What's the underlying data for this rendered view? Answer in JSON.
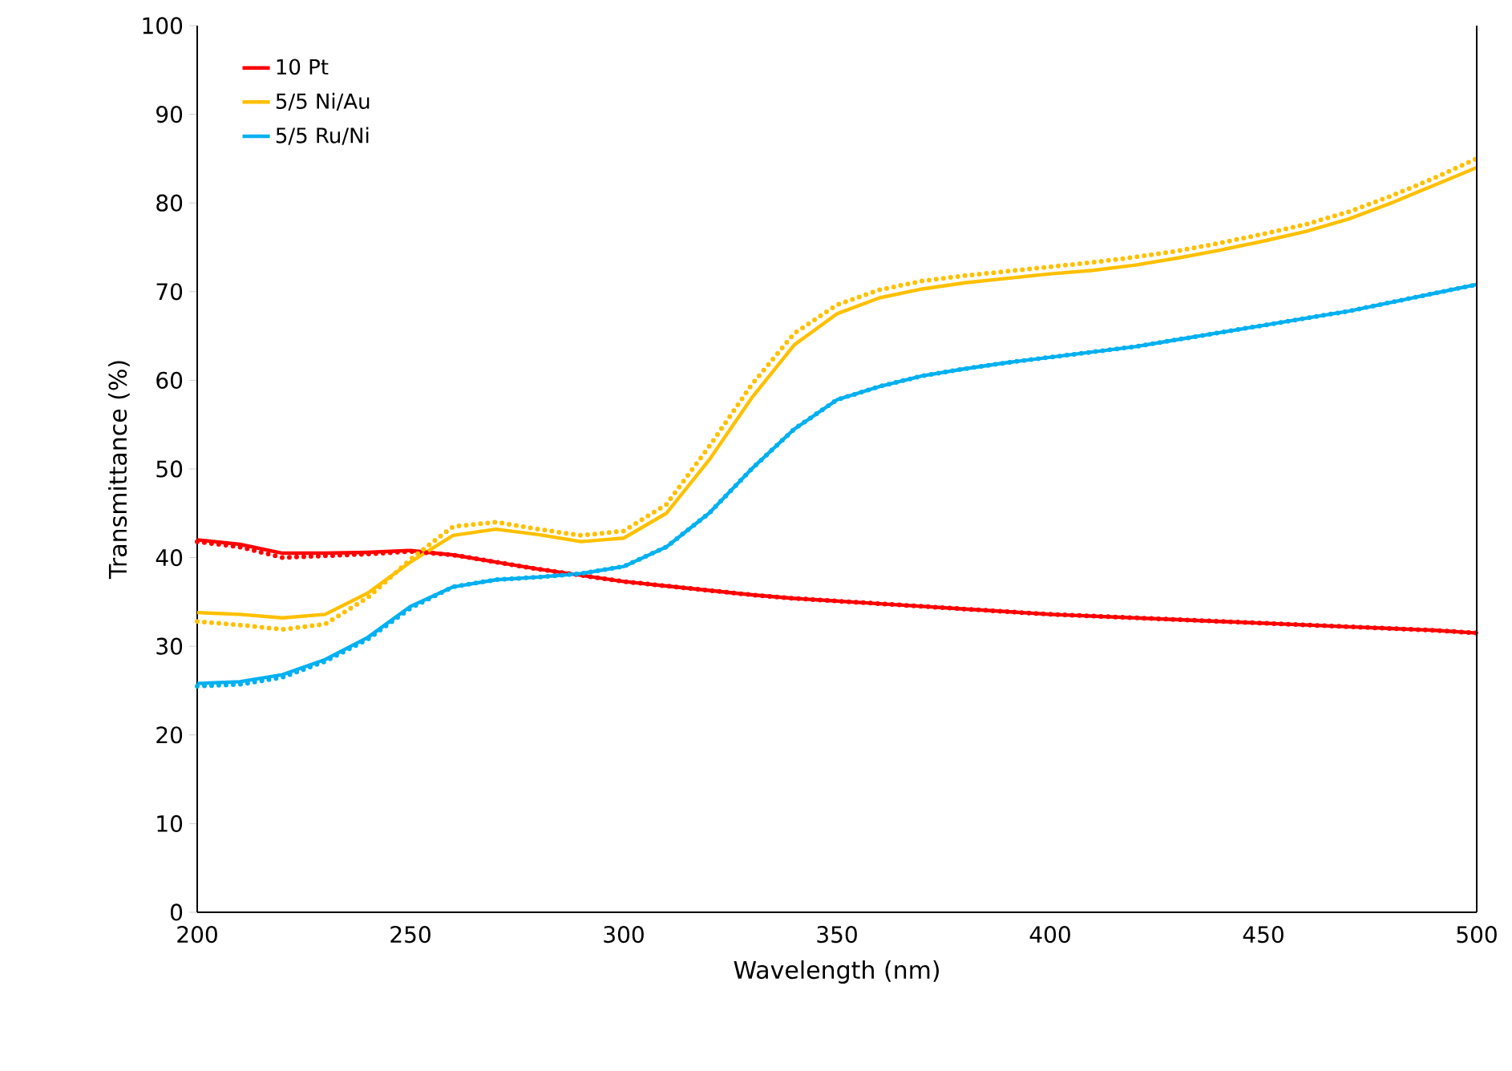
{
  "chart_data": {
    "type": "line",
    "xlabel": "Wavelength (nm)",
    "ylabel": "Transmittance (%)",
    "x": [
      200,
      210,
      220,
      230,
      240,
      250,
      260,
      270,
      280,
      290,
      300,
      310,
      320,
      330,
      340,
      350,
      360,
      370,
      380,
      390,
      400,
      410,
      420,
      430,
      440,
      450,
      460,
      470,
      480,
      490,
      500
    ],
    "xlim": [
      200,
      500
    ],
    "ylim": [
      0,
      100
    ],
    "xticks": [
      200,
      250,
      300,
      350,
      400,
      450,
      500
    ],
    "yticks": [
      0,
      10,
      20,
      30,
      40,
      50,
      60,
      70,
      80,
      90,
      100
    ],
    "grid": false,
    "legend": "top left",
    "marker": "none",
    "series": [
      {
        "name": "10 Pt",
        "color": "#ff0000",
        "line_style": "solid",
        "values": [
          42,
          41.5,
          40.5,
          40.5,
          40.6,
          40.8,
          40.3,
          39.5,
          38.7,
          38,
          37.3,
          36.8,
          36.3,
          35.8,
          35.4,
          35.1,
          34.8,
          34.5,
          34.2,
          33.9,
          33.6,
          33.4,
          33.2,
          33,
          32.8,
          32.6,
          32.4,
          32.2,
          32,
          31.8,
          31.5
        ]
      },
      {
        "name": "5/5 Ni/Au",
        "color": "#ffc000",
        "line_style": "solid",
        "values": [
          33.8,
          33.6,
          33.2,
          33.6,
          36,
          39.5,
          42.5,
          43.2,
          42.6,
          41.8,
          42.2,
          45,
          51,
          58,
          64,
          67.5,
          69.3,
          70.3,
          71,
          71.5,
          72,
          72.4,
          73,
          73.8,
          74.7,
          75.7,
          76.8,
          78.2,
          80,
          82,
          84
        ]
      },
      {
        "name": "5/5 Ru/Ni",
        "color": "#00b0f0",
        "line_style": "solid",
        "values": [
          25.8,
          26,
          26.8,
          28.5,
          31,
          34.5,
          36.7,
          37.5,
          37.8,
          38.2,
          39,
          41.2,
          45,
          50,
          54.5,
          57.8,
          59.3,
          60.5,
          61.3,
          62,
          62.6,
          63.2,
          63.8,
          64.6,
          65.4,
          66.2,
          67,
          67.8,
          68.8,
          69.8,
          70.8
        ]
      },
      {
        "color": "#ff0000",
        "line_style": "dotted",
        "values": [
          41.8,
          41.2,
          40,
          40.2,
          40.4,
          40.7,
          40.3,
          39.5,
          38.7,
          38,
          37.3,
          36.8,
          36.3,
          35.8,
          35.4,
          35.1,
          34.8,
          34.5,
          34.2,
          33.9,
          33.6,
          33.4,
          33.2,
          33,
          32.8,
          32.6,
          32.4,
          32.2,
          32,
          31.8,
          31.5
        ]
      },
      {
        "color": "#ffc000",
        "line_style": "dotted",
        "values": [
          32.8,
          32.4,
          31.9,
          32.5,
          35.5,
          39.8,
          43.5,
          44,
          43.2,
          42.5,
          43,
          46,
          52.5,
          59.5,
          65.3,
          68.5,
          70.2,
          71.2,
          71.8,
          72.3,
          72.8,
          73.3,
          73.9,
          74.6,
          75.5,
          76.5,
          77.6,
          79,
          80.8,
          82.8,
          85
        ]
      },
      {
        "color": "#00b0f0",
        "line_style": "dotted",
        "values": [
          25.5,
          25.7,
          26.5,
          28.3,
          30.8,
          34.3,
          36.7,
          37.5,
          37.8,
          38.2,
          39,
          41.2,
          45,
          50,
          54.5,
          57.8,
          59.3,
          60.5,
          61.3,
          62,
          62.6,
          63.2,
          63.8,
          64.6,
          65.4,
          66.2,
          67,
          67.8,
          68.8,
          69.8,
          70.8
        ]
      }
    ]
  }
}
